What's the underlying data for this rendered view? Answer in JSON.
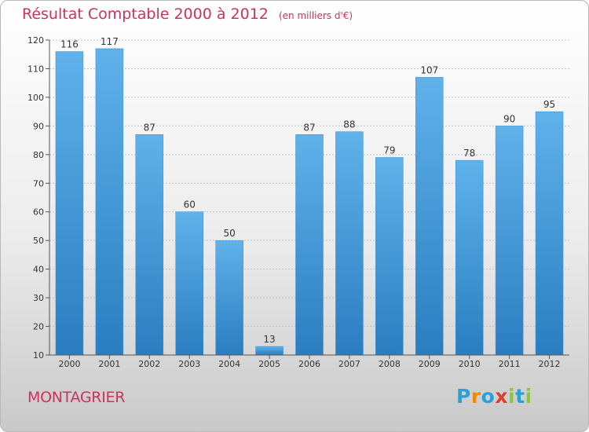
{
  "title": "Résultat Comptable 2000 à 2012",
  "subtitle": "(en milliers d'€)",
  "commune": "MONTAGRIER",
  "logo": {
    "text": "Proxiti",
    "letters": [
      {
        "ch": "P",
        "color": "#2aa0d8"
      },
      {
        "ch": "r",
        "color": "#f08a00"
      },
      {
        "ch": "o",
        "color": "#2aa0d8"
      },
      {
        "ch": "x",
        "color": "#e23b2e"
      },
      {
        "ch": "i",
        "color": "#8cc63f"
      },
      {
        "ch": "t",
        "color": "#2aa0d8"
      },
      {
        "ch": "i",
        "color": "#8cc63f"
      }
    ]
  },
  "colors": {
    "bar_light": "#5fb2ea",
    "bar_dark": "#2a7ec0",
    "title": "#d0305e"
  },
  "chart_data": {
    "type": "bar",
    "categories": [
      "2000",
      "2001",
      "2002",
      "2003",
      "2004",
      "2005",
      "2006",
      "2007",
      "2008",
      "2009",
      "2010",
      "2011",
      "2012"
    ],
    "values": [
      116,
      117,
      87,
      60,
      50,
      13,
      87,
      88,
      79,
      107,
      78,
      90,
      95
    ],
    "ylim": [
      10,
      120
    ],
    "yticks": [
      10,
      20,
      30,
      40,
      50,
      60,
      70,
      80,
      90,
      100,
      110,
      120
    ],
    "grid": true,
    "title": "Résultat Comptable 2000 à 2012",
    "subtitle": "(en milliers d'€)"
  }
}
